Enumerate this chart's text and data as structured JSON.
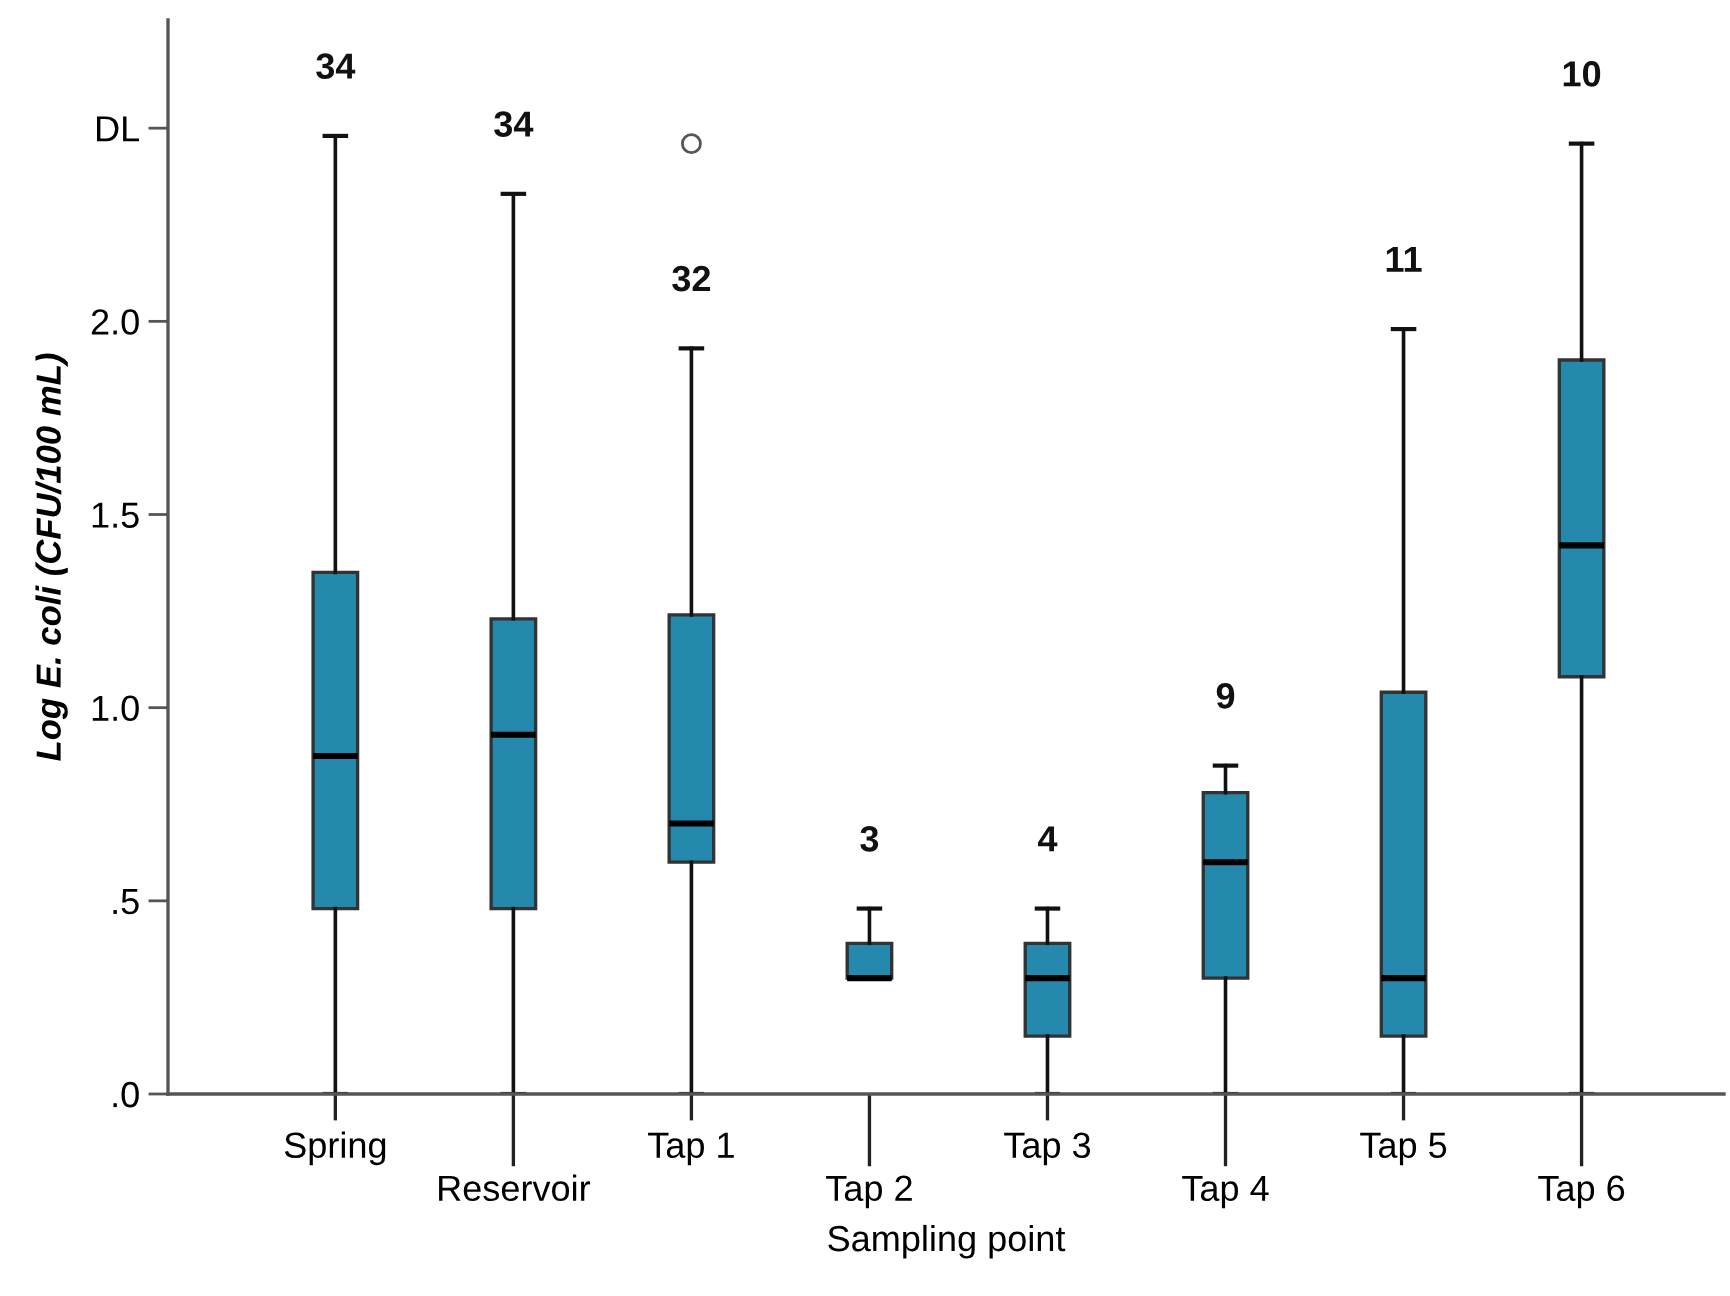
{
  "chart_data": {
    "type": "box",
    "xlabel": "Sampling point",
    "ylabel": "Log E. coli (CFU/100 mL)",
    "categories": [
      "Spring",
      "Reservoir",
      "Tap 1",
      "Tap 2",
      "Tap 3",
      "Tap 4",
      "Tap 5",
      "Tap 6"
    ],
    "boxes": [
      {
        "low": 0,
        "q1": 0.48,
        "median": 0.875,
        "q3": 1.35,
        "high": 2.48
      },
      {
        "low": 0,
        "q1": 0.48,
        "median": 0.93,
        "q3": 1.23,
        "high": 2.33
      },
      {
        "low": 0,
        "q1": 0.6,
        "median": 0.7,
        "q3": 1.24,
        "high": 1.93,
        "outliers": [
          2.46
        ]
      },
      {
        "low": 0.3,
        "q1": 0.3,
        "median": 0.3,
        "q3": 0.39,
        "high": 0.48
      },
      {
        "low": 0,
        "q1": 0.15,
        "median": 0.3,
        "q3": 0.39,
        "high": 0.48
      },
      {
        "low": 0,
        "q1": 0.3,
        "median": 0.6,
        "q3": 0.78,
        "high": 0.85
      },
      {
        "low": 0,
        "q1": 0.15,
        "median": 0.3,
        "q3": 1.04,
        "high": 1.98
      },
      {
        "low": 0,
        "q1": 1.08,
        "median": 1.42,
        "q3": 1.9,
        "high": 2.46
      }
    ],
    "color": "#2589ad",
    "ylim": [
      0,
      2.78
    ],
    "yticks": [
      {
        "value": 0,
        "label": ".0"
      },
      {
        "value": 0.5,
        "label": ".5"
      },
      {
        "value": 1.0,
        "label": "1.0"
      },
      {
        "value": 1.5,
        "label": "1.5"
      },
      {
        "value": 2.0,
        "label": "2.0"
      },
      {
        "value": 2.5,
        "label": "DL"
      }
    ],
    "annotations": [
      "34",
      "34",
      "32",
      "3",
      "4",
      "9",
      "11",
      "10"
    ]
  }
}
